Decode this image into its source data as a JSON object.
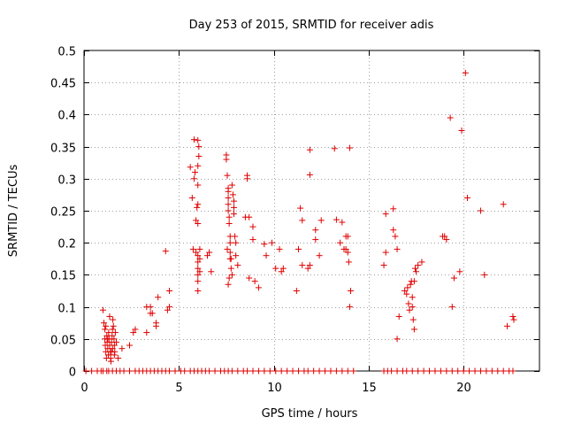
{
  "chart_data": {
    "type": "scatter",
    "title": "Day 253 of 2015, SRMTID for receiver adis",
    "xlabel": "GPS time / hours",
    "ylabel": "SRMTID / TECUs",
    "xlim": [
      0,
      24
    ],
    "ylim": [
      0,
      0.5
    ],
    "xticks": [
      "0",
      "5",
      "10",
      "15",
      "20"
    ],
    "xtick_values": [
      0,
      5,
      10,
      15,
      20
    ],
    "yticks": [
      "0",
      "0.05",
      "0.1",
      "0.15",
      "0.2",
      "0.25",
      "0.3",
      "0.35",
      "0.4",
      "0.45",
      "0.5"
    ],
    "ytick_values": [
      0,
      0.05,
      0.1,
      0.15,
      0.2,
      0.25,
      0.3,
      0.35,
      0.4,
      0.45,
      0.5
    ],
    "grid": true,
    "marker_color": "#e00000",
    "marker": "+",
    "points": [
      [
        0.1,
        0
      ],
      [
        0.4,
        0
      ],
      [
        0.7,
        0
      ],
      [
        0.9,
        0
      ],
      [
        1.0,
        0
      ],
      [
        1.2,
        0
      ],
      [
        1.3,
        0
      ],
      [
        1.5,
        0
      ],
      [
        1.7,
        0
      ],
      [
        1.9,
        0
      ],
      [
        2.1,
        0
      ],
      [
        2.4,
        0
      ],
      [
        2.7,
        0
      ],
      [
        2.9,
        0
      ],
      [
        3.1,
        0
      ],
      [
        3.3,
        0
      ],
      [
        3.5,
        0
      ],
      [
        3.7,
        0
      ],
      [
        3.9,
        0
      ],
      [
        4.1,
        0
      ],
      [
        4.3,
        0
      ],
      [
        4.5,
        0
      ],
      [
        4.8,
        0
      ],
      [
        5.1,
        0
      ],
      [
        5.3,
        0
      ],
      [
        5.6,
        0
      ],
      [
        5.8,
        0
      ],
      [
        6.0,
        0
      ],
      [
        6.2,
        0
      ],
      [
        6.4,
        0
      ],
      [
        6.6,
        0
      ],
      [
        6.9,
        0
      ],
      [
        7.2,
        0
      ],
      [
        7.4,
        0
      ],
      [
        7.6,
        0
      ],
      [
        7.8,
        0
      ],
      [
        8.1,
        0
      ],
      [
        8.4,
        0
      ],
      [
        8.6,
        0
      ],
      [
        8.9,
        0
      ],
      [
        9.2,
        0
      ],
      [
        9.5,
        0
      ],
      [
        9.8,
        0
      ],
      [
        10.1,
        0
      ],
      [
        10.4,
        0
      ],
      [
        10.7,
        0
      ],
      [
        11.0,
        0
      ],
      [
        11.3,
        0
      ],
      [
        11.6,
        0
      ],
      [
        11.8,
        0
      ],
      [
        12.1,
        0
      ],
      [
        12.4,
        0
      ],
      [
        12.7,
        0
      ],
      [
        13.0,
        0
      ],
      [
        13.3,
        0
      ],
      [
        13.6,
        0
      ],
      [
        13.9,
        0
      ],
      [
        14.2,
        0
      ],
      [
        15.8,
        0
      ],
      [
        16.0,
        0
      ],
      [
        16.2,
        0
      ],
      [
        16.5,
        0
      ],
      [
        16.8,
        0
      ],
      [
        17.0,
        0
      ],
      [
        17.3,
        0
      ],
      [
        17.6,
        0
      ],
      [
        17.9,
        0
      ],
      [
        18.2,
        0
      ],
      [
        18.5,
        0
      ],
      [
        18.8,
        0
      ],
      [
        19.1,
        0
      ],
      [
        19.4,
        0
      ],
      [
        19.7,
        0
      ],
      [
        20.0,
        0
      ],
      [
        20.3,
        0
      ],
      [
        20.6,
        0
      ],
      [
        20.9,
        0
      ],
      [
        21.2,
        0
      ],
      [
        21.5,
        0
      ],
      [
        21.8,
        0
      ],
      [
        22.1,
        0
      ],
      [
        22.4,
        0
      ],
      [
        22.6,
        0
      ],
      [
        1.0,
        0.095
      ],
      [
        1.05,
        0.075
      ],
      [
        1.1,
        0.065
      ],
      [
        1.1,
        0.05
      ],
      [
        1.12,
        0.04
      ],
      [
        1.15,
        0.03
      ],
      [
        1.18,
        0.02
      ],
      [
        1.2,
        0.055
      ],
      [
        1.22,
        0.045
      ],
      [
        1.25,
        0.035
      ],
      [
        1.28,
        0.025
      ],
      [
        1.3,
        0.06
      ],
      [
        1.32,
        0.05
      ],
      [
        1.35,
        0.04
      ],
      [
        1.38,
        0.03
      ],
      [
        1.4,
        0.02
      ],
      [
        1.42,
        0.015
      ],
      [
        1.45,
        0.045
      ],
      [
        1.48,
        0.055
      ],
      [
        1.5,
        0.065
      ],
      [
        1.52,
        0.08
      ],
      [
        1.55,
        0.07
      ],
      [
        1.58,
        0.05
      ],
      [
        1.6,
        0.04
      ],
      [
        1.62,
        0.03
      ],
      [
        1.65,
        0.06
      ],
      [
        1.7,
        0.045
      ],
      [
        1.15,
        0.07
      ],
      [
        1.35,
        0.085
      ],
      [
        1.5,
        0.035
      ],
      [
        1.6,
        0.025
      ],
      [
        1.25,
        0.05
      ],
      [
        1.45,
        0.03
      ],
      [
        1.8,
        0.02
      ],
      [
        2.0,
        0.035
      ],
      [
        2.4,
        0.04
      ],
      [
        2.6,
        0.06
      ],
      [
        2.7,
        0.065
      ],
      [
        3.3,
        0.1
      ],
      [
        3.3,
        0.06
      ],
      [
        3.5,
        0.09
      ],
      [
        3.5,
        0.1
      ],
      [
        3.6,
        0.09
      ],
      [
        3.8,
        0.07
      ],
      [
        3.8,
        0.075
      ],
      [
        3.9,
        0.115
      ],
      [
        4.4,
        0.095
      ],
      [
        4.5,
        0.1
      ],
      [
        4.5,
        0.125
      ],
      [
        4.3,
        0.187
      ],
      [
        5.6,
        0.318
      ],
      [
        5.7,
        0.27
      ],
      [
        5.75,
        0.19
      ],
      [
        5.8,
        0.361
      ],
      [
        5.8,
        0.3
      ],
      [
        5.85,
        0.31
      ],
      [
        5.9,
        0.235
      ],
      [
        5.9,
        0.185
      ],
      [
        5.95,
        0.255
      ],
      [
        6.0,
        0.36
      ],
      [
        6.0,
        0.32
      ],
      [
        6.0,
        0.29
      ],
      [
        6.0,
        0.26
      ],
      [
        6.0,
        0.23
      ],
      [
        6.0,
        0.18
      ],
      [
        6.0,
        0.17
      ],
      [
        6.0,
        0.16
      ],
      [
        6.0,
        0.15
      ],
      [
        6.0,
        0.14
      ],
      [
        6.0,
        0.125
      ],
      [
        6.05,
        0.35
      ],
      [
        6.05,
        0.335
      ],
      [
        6.1,
        0.19
      ],
      [
        6.1,
        0.175
      ],
      [
        6.1,
        0.155
      ],
      [
        6.5,
        0.18
      ],
      [
        6.6,
        0.185
      ],
      [
        6.7,
        0.155
      ],
      [
        7.5,
        0.337
      ],
      [
        7.5,
        0.33
      ],
      [
        7.55,
        0.305
      ],
      [
        7.6,
        0.285
      ],
      [
        7.6,
        0.28
      ],
      [
        7.6,
        0.27
      ],
      [
        7.6,
        0.26
      ],
      [
        7.6,
        0.25
      ],
      [
        7.65,
        0.24
      ],
      [
        7.65,
        0.23
      ],
      [
        7.7,
        0.21
      ],
      [
        7.7,
        0.2
      ],
      [
        7.7,
        0.185
      ],
      [
        7.75,
        0.175
      ],
      [
        7.75,
        0.16
      ],
      [
        7.8,
        0.15
      ],
      [
        7.6,
        0.135
      ],
      [
        7.65,
        0.145
      ],
      [
        7.8,
        0.29
      ],
      [
        7.85,
        0.275
      ],
      [
        7.9,
        0.265
      ],
      [
        7.9,
        0.255
      ],
      [
        7.9,
        0.245
      ],
      [
        7.95,
        0.21
      ],
      [
        8.0,
        0.2
      ],
      [
        8.0,
        0.18
      ],
      [
        8.1,
        0.165
      ],
      [
        7.55,
        0.19
      ],
      [
        7.7,
        0.175
      ],
      [
        8.5,
        0.24
      ],
      [
        8.6,
        0.305
      ],
      [
        8.6,
        0.3
      ],
      [
        8.7,
        0.24
      ],
      [
        8.7,
        0.145
      ],
      [
        8.9,
        0.225
      ],
      [
        8.9,
        0.205
      ],
      [
        9.0,
        0.14
      ],
      [
        9.2,
        0.13
      ],
      [
        9.5,
        0.198
      ],
      [
        9.6,
        0.18
      ],
      [
        9.9,
        0.2
      ],
      [
        10.1,
        0.16
      ],
      [
        10.3,
        0.19
      ],
      [
        10.4,
        0.155
      ],
      [
        10.5,
        0.16
      ],
      [
        11.2,
        0.125
      ],
      [
        11.3,
        0.19
      ],
      [
        11.4,
        0.254
      ],
      [
        11.5,
        0.235
      ],
      [
        11.5,
        0.165
      ],
      [
        11.8,
        0.16
      ],
      [
        11.9,
        0.345
      ],
      [
        11.9,
        0.306
      ],
      [
        11.9,
        0.165
      ],
      [
        12.2,
        0.22
      ],
      [
        12.2,
        0.205
      ],
      [
        12.4,
        0.18
      ],
      [
        12.5,
        0.235
      ],
      [
        13.2,
        0.347
      ],
      [
        13.3,
        0.236
      ],
      [
        13.5,
        0.2
      ],
      [
        13.6,
        0.232
      ],
      [
        13.7,
        0.19
      ],
      [
        13.8,
        0.21
      ],
      [
        13.8,
        0.19
      ],
      [
        13.9,
        0.21
      ],
      [
        13.9,
        0.185
      ],
      [
        13.95,
        0.17
      ],
      [
        14.0,
        0.348
      ],
      [
        14.0,
        0.1
      ],
      [
        14.05,
        0.125
      ],
      [
        15.8,
        0.165
      ],
      [
        15.9,
        0.245
      ],
      [
        15.9,
        0.185
      ],
      [
        16.3,
        0.253
      ],
      [
        16.3,
        0.22
      ],
      [
        16.4,
        0.21
      ],
      [
        16.5,
        0.19
      ],
      [
        16.5,
        0.05
      ],
      [
        16.6,
        0.085
      ],
      [
        16.9,
        0.125
      ],
      [
        17.0,
        0.12
      ],
      [
        17.05,
        0.13
      ],
      [
        17.1,
        0.105
      ],
      [
        17.15,
        0.095
      ],
      [
        17.2,
        0.135
      ],
      [
        17.25,
        0.14
      ],
      [
        17.3,
        0.115
      ],
      [
        17.3,
        0.1
      ],
      [
        17.35,
        0.08
      ],
      [
        17.4,
        0.065
      ],
      [
        17.4,
        0.14
      ],
      [
        17.45,
        0.16
      ],
      [
        17.5,
        0.155
      ],
      [
        17.6,
        0.165
      ],
      [
        17.8,
        0.17
      ],
      [
        18.9,
        0.21
      ],
      [
        19.0,
        0.21
      ],
      [
        19.1,
        0.205
      ],
      [
        19.3,
        0.395
      ],
      [
        19.4,
        0.1
      ],
      [
        19.5,
        0.145
      ],
      [
        19.8,
        0.155
      ],
      [
        19.9,
        0.375
      ],
      [
        20.1,
        0.465
      ],
      [
        20.2,
        0.27
      ],
      [
        20.9,
        0.25
      ],
      [
        21.1,
        0.15
      ],
      [
        22.1,
        0.26
      ],
      [
        22.3,
        0.07
      ],
      [
        22.6,
        0.085
      ],
      [
        22.65,
        0.08
      ]
    ]
  }
}
